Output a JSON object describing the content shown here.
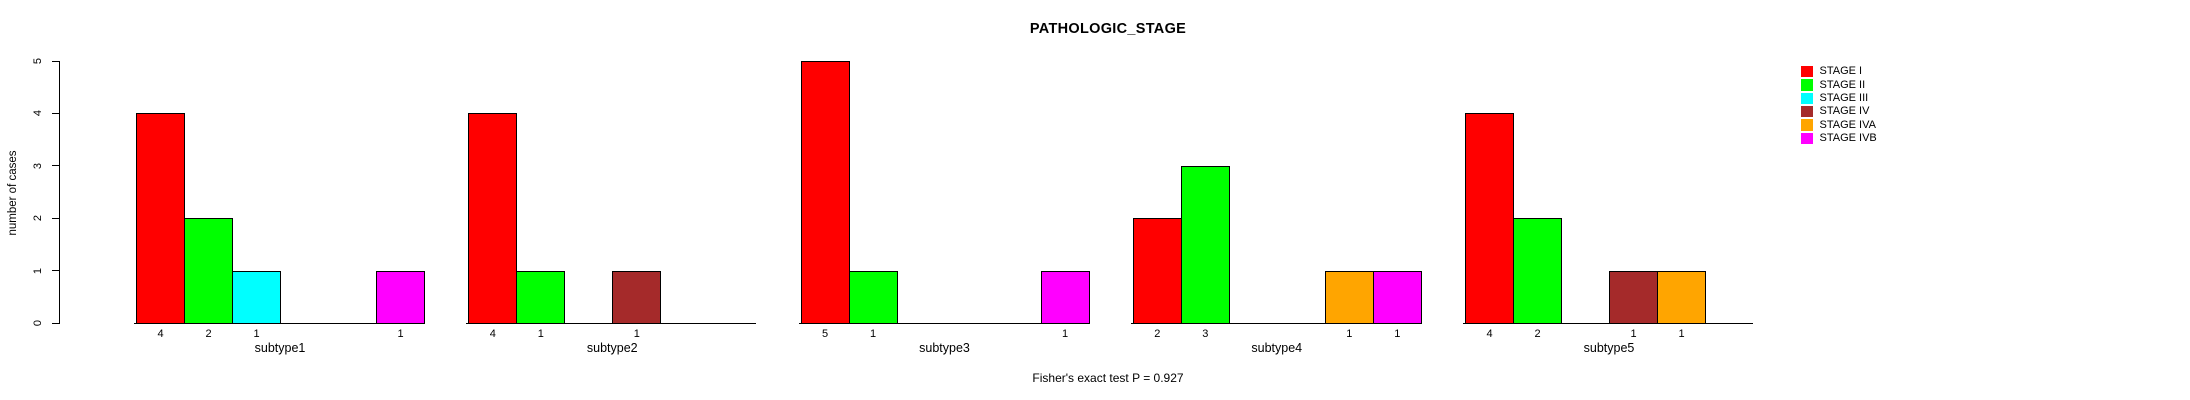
{
  "chart_data": {
    "type": "bar",
    "title": "PATHOLOGIC_STAGE",
    "xlabel": "",
    "ylabel": "number of cases",
    "ylim": [
      0,
      5
    ],
    "y_ticks": [
      "0",
      "1",
      "2",
      "3",
      "4",
      "5"
    ],
    "grid": false,
    "legend_position": "top-right",
    "categories": [
      "subtype1",
      "subtype2",
      "subtype3",
      "subtype4",
      "subtype5"
    ],
    "series": [
      {
        "name": "STAGE I",
        "color": "#FF0000",
        "values": [
          4,
          4,
          5,
          2,
          4
        ]
      },
      {
        "name": "STAGE II",
        "color": "#00FF00",
        "values": [
          2,
          1,
          1,
          3,
          2
        ]
      },
      {
        "name": "STAGE III",
        "color": "#00FFFF",
        "values": [
          1,
          0,
          0,
          0,
          0
        ]
      },
      {
        "name": "STAGE IV",
        "color": "#A52A2A",
        "values": [
          0,
          1,
          0,
          0,
          1
        ]
      },
      {
        "name": "STAGE IVA",
        "color": "#FFA500",
        "values": [
          0,
          0,
          0,
          1,
          1
        ]
      },
      {
        "name": "STAGE IVB",
        "color": "#FF00FF",
        "values": [
          1,
          0,
          1,
          1,
          0
        ]
      }
    ],
    "bar_value_labels": true,
    "annotation": "Fisher's exact test P = 0.927"
  }
}
